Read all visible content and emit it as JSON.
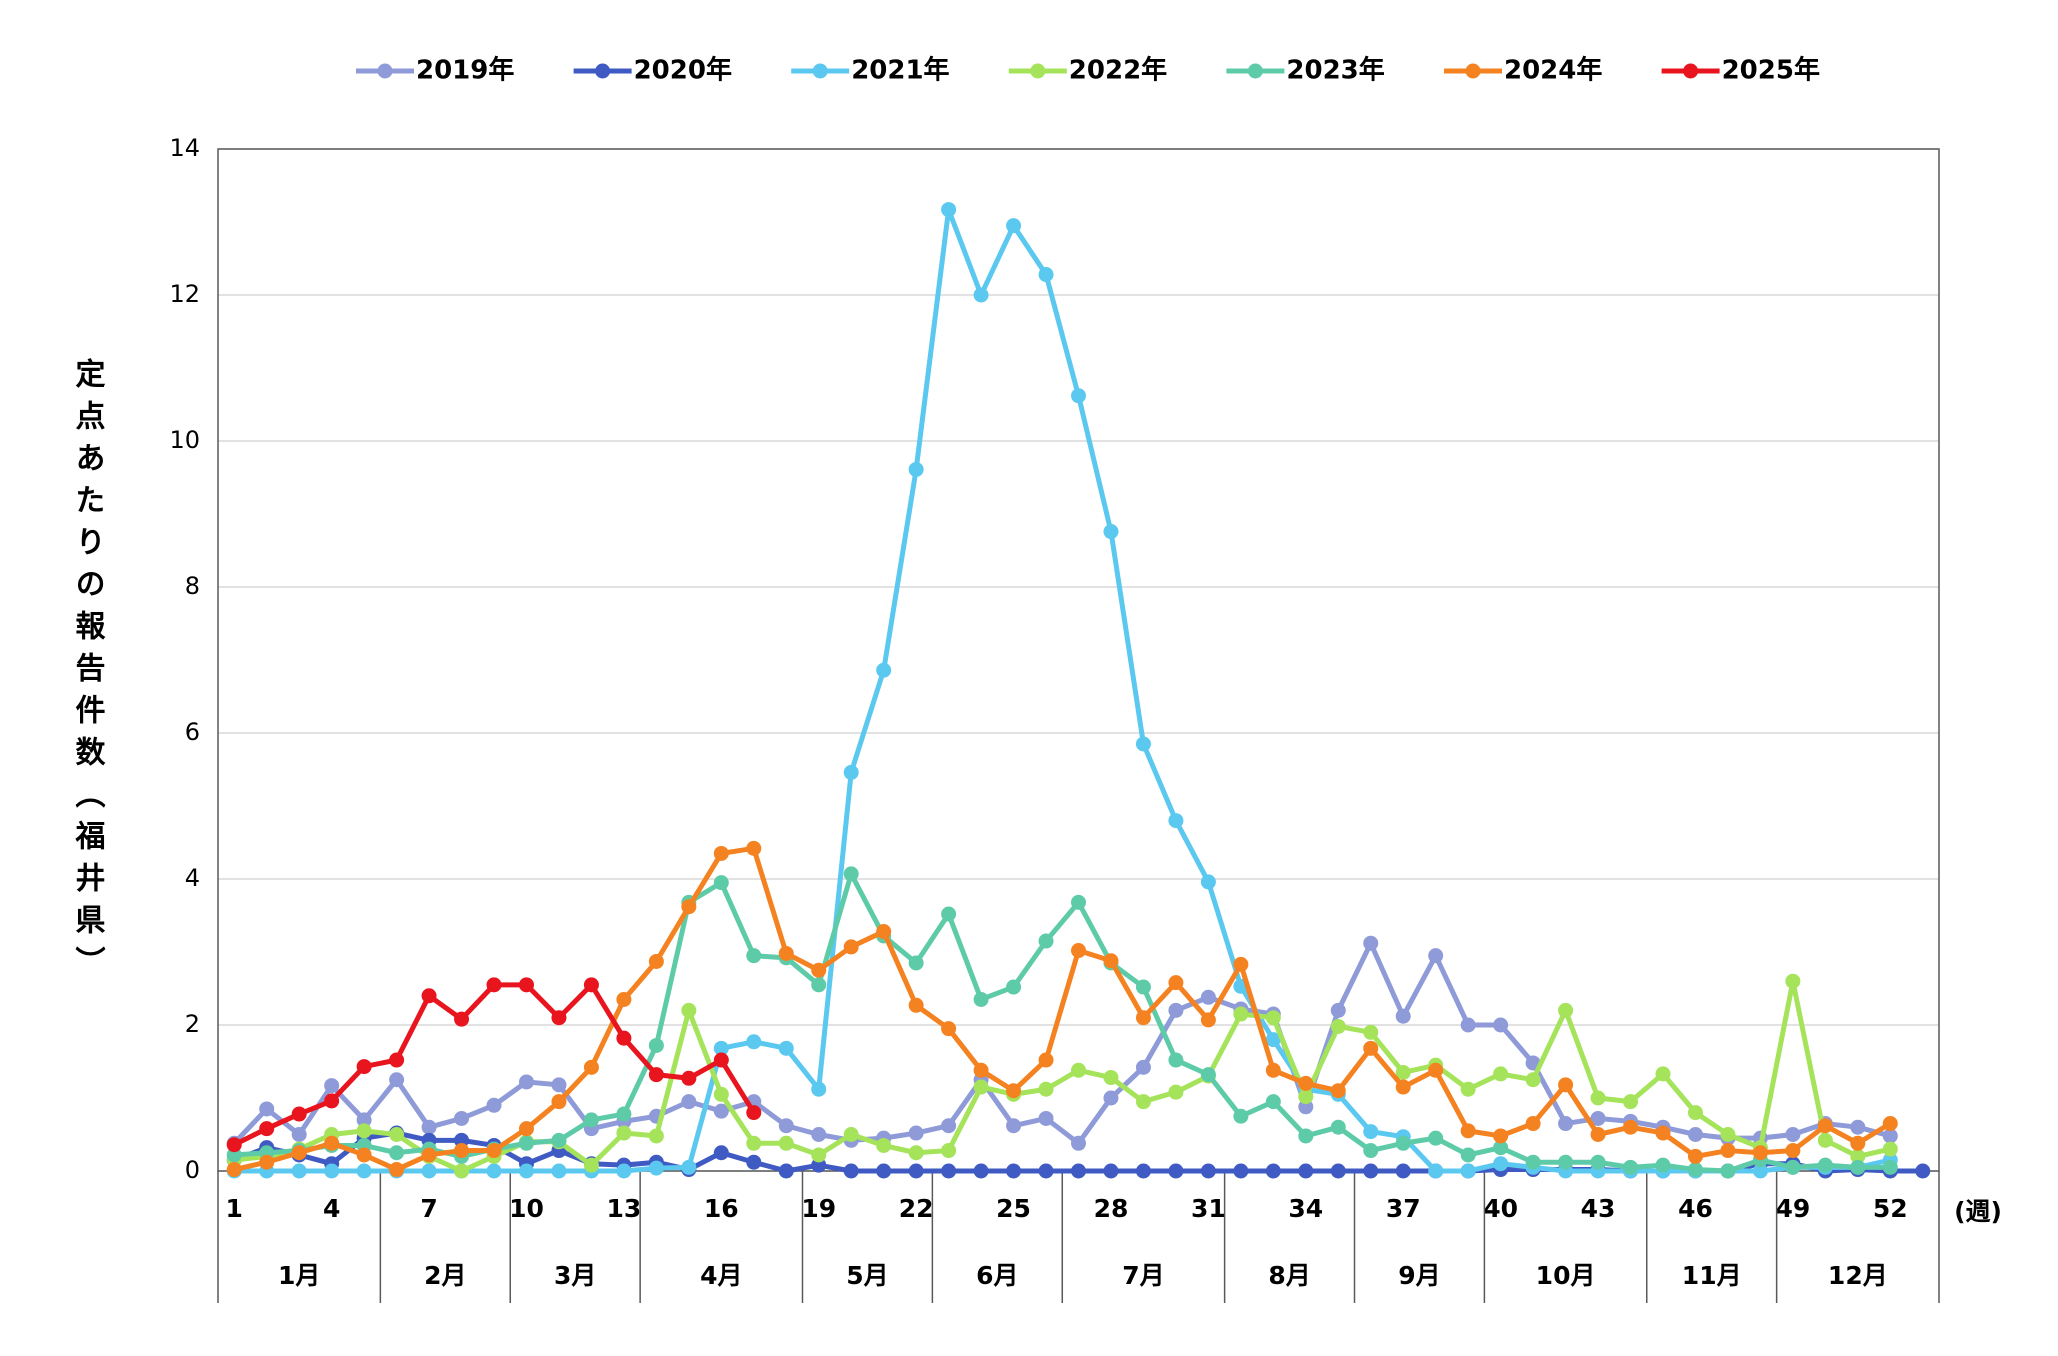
{
  "chart_data": {
    "type": "line",
    "y_label": "定点あたりの報告件数（福井県）",
    "x_label": "(週)",
    "categories": [
      "1",
      null,
      null,
      "4",
      null,
      null,
      "7",
      null,
      null,
      "10",
      null,
      null,
      "13",
      null,
      null,
      "16",
      null,
      null,
      "19",
      null,
      null,
      "22",
      null,
      null,
      "25",
      null,
      null,
      "28",
      null,
      null,
      "31",
      null,
      null,
      "34",
      null,
      null,
      "37",
      null,
      null,
      "40",
      null,
      null,
      "43",
      null,
      null,
      "46",
      null,
      null,
      "49",
      null,
      null,
      "52",
      null
    ],
    "months": [
      "1月",
      "2月",
      "3月",
      "4月",
      "5月",
      "6月",
      "7月",
      "8月",
      "9月",
      "10月",
      "11月",
      "12月"
    ],
    "ylim": [
      0,
      14
    ],
    "yticks": [
      0,
      2,
      4,
      6,
      8,
      10,
      12,
      14
    ],
    "grid": true,
    "legend": "top",
    "series": [
      {
        "name": "2019年",
        "color": "#8e9bd8",
        "values": [
          0.38,
          0.85,
          0.5,
          1.17,
          0.7,
          1.25,
          0.6,
          0.72,
          0.9,
          1.22,
          1.18,
          0.58,
          0.68,
          0.75,
          0.95,
          0.82,
          0.95,
          0.62,
          0.5,
          0.42,
          0.45,
          0.52,
          0.62,
          1.25,
          0.62,
          0.72,
          0.38,
          1.0,
          1.42,
          2.2,
          2.38,
          2.22,
          2.15,
          0.88,
          2.2,
          3.12,
          2.12,
          2.95,
          2.0,
          2.0,
          1.48,
          0.65,
          0.72,
          0.68,
          0.6,
          0.5,
          0.45,
          0.45,
          0.5,
          0.65,
          0.6,
          0.48,
          null
        ]
      },
      {
        "name": "2020年",
        "color": "#3f5ac2",
        "values": [
          0.15,
          0.32,
          0.22,
          0.1,
          0.45,
          0.52,
          0.42,
          0.42,
          0.35,
          0.1,
          0.28,
          0.1,
          0.08,
          0.12,
          0.02,
          0.25,
          0.12,
          0,
          0.08,
          0,
          0,
          0,
          0,
          0,
          0,
          0,
          0,
          0,
          0,
          0,
          0,
          0,
          0,
          0,
          0,
          0,
          0,
          0,
          0,
          0.02,
          0.02,
          0.02,
          0.02,
          0,
          0,
          0,
          0,
          0.1,
          0.1,
          0,
          0.02,
          0,
          0
        ]
      },
      {
        "name": "2021年",
        "color": "#5bc8f0",
        "values": [
          0,
          0,
          0,
          0,
          0,
          0,
          0,
          0,
          0,
          0,
          0,
          0,
          0,
          0.04,
          0.05,
          1.68,
          1.77,
          1.68,
          1.12,
          5.46,
          6.86,
          9.61,
          13.17,
          12.0,
          12.95,
          12.28,
          10.62,
          8.76,
          5.85,
          4.8,
          3.96,
          2.53,
          1.8,
          1.12,
          1.05,
          0.54,
          0.47,
          0,
          0,
          0.1,
          0.05,
          0,
          0,
          0,
          0,
          0,
          0,
          0,
          0.05,
          0.05,
          0.05,
          0.15,
          null
        ]
      },
      {
        "name": "2022年",
        "color": "#a4e35a",
        "values": [
          0.15,
          0.2,
          0.3,
          0.5,
          0.55,
          0.5,
          0.2,
          0,
          0.2,
          0.4,
          0.4,
          0.08,
          0.52,
          0.48,
          2.2,
          1.05,
          0.38,
          0.38,
          0.22,
          0.5,
          0.35,
          0.25,
          0.28,
          1.15,
          1.05,
          1.12,
          1.38,
          1.28,
          0.95,
          1.08,
          1.3,
          2.15,
          2.1,
          1.02,
          1.98,
          1.9,
          1.35,
          1.45,
          1.12,
          1.33,
          1.25,
          2.2,
          1.0,
          0.95,
          1.33,
          0.8,
          0.5,
          0.32,
          2.6,
          0.42,
          0.2,
          0.3,
          null
        ]
      },
      {
        "name": "2023年",
        "color": "#5ecba8",
        "values": [
          0.22,
          0.25,
          0.28,
          0.35,
          0.35,
          0.25,
          0.3,
          0.2,
          0.3,
          0.38,
          0.42,
          0.7,
          0.78,
          1.72,
          3.68,
          3.95,
          2.95,
          2.92,
          2.55,
          4.07,
          3.22,
          2.85,
          3.52,
          2.35,
          2.52,
          3.15,
          3.68,
          2.85,
          2.52,
          1.52,
          1.32,
          0.75,
          0.95,
          0.48,
          0.6,
          0.28,
          0.38,
          0.45,
          0.22,
          0.32,
          0.12,
          0.12,
          0.12,
          0.05,
          0.08,
          0.02,
          0,
          0.15,
          0.05,
          0.08,
          0.05,
          0.05,
          null
        ]
      },
      {
        "name": "2024年",
        "color": "#f58220",
        "values": [
          0.02,
          0.12,
          0.25,
          0.38,
          0.22,
          0.02,
          0.22,
          0.28,
          0.28,
          0.58,
          0.95,
          1.42,
          2.35,
          2.87,
          3.62,
          4.35,
          4.42,
          2.98,
          2.75,
          3.07,
          3.28,
          2.27,
          1.95,
          1.38,
          1.1,
          1.52,
          3.02,
          2.88,
          2.1,
          2.58,
          2.07,
          2.83,
          1.38,
          1.2,
          1.1,
          1.68,
          1.15,
          1.38,
          0.55,
          0.48,
          0.65,
          1.18,
          0.5,
          0.6,
          0.52,
          0.2,
          0.28,
          0.25,
          0.28,
          0.62,
          0.38,
          0.65,
          null
        ]
      },
      {
        "name": "2025年",
        "color": "#e8141e",
        "values": [
          0.36,
          0.58,
          0.78,
          0.96,
          1.43,
          1.52,
          2.4,
          2.08,
          2.55,
          2.55,
          2.1,
          2.55,
          1.82,
          1.32,
          1.27,
          1.52,
          0.8,
          null,
          null,
          null,
          null,
          null,
          null,
          null,
          null,
          null,
          null,
          null,
          null,
          null,
          null,
          null,
          null,
          null,
          null,
          null,
          null,
          null,
          null,
          null,
          null,
          null,
          null,
          null,
          null,
          null,
          null,
          null,
          null,
          null,
          null,
          null,
          null
        ]
      }
    ]
  }
}
